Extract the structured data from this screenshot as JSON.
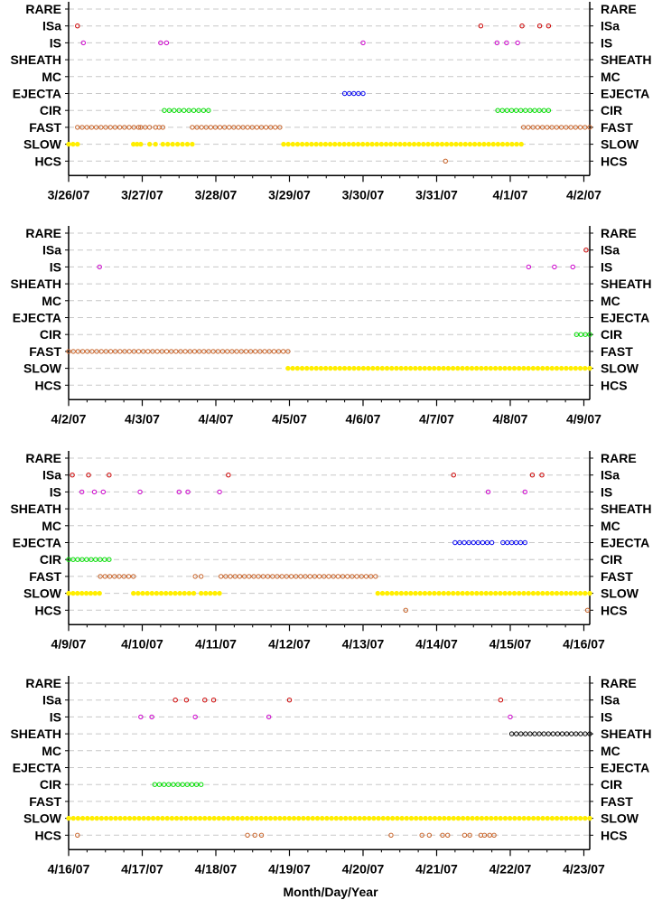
{
  "chart_data": {
    "type": "scatter",
    "xlabel": "Month/Day/Year",
    "categories": [
      "RARE",
      "ISa",
      "IS",
      "SHEATH",
      "MC",
      "EJECTA",
      "CIR",
      "FAST",
      "SLOW",
      "HCS"
    ],
    "colors": {
      "RARE": "#888888",
      "ISa": "#cc0000",
      "IS": "#cc00cc",
      "SHEATH": "#000000",
      "MC": "#888888",
      "EJECTA": "#0000ee",
      "CIR": "#00dd00",
      "FAST": "#c8642a",
      "SLOW": "#ffee00",
      "HCS": "#c8642a"
    },
    "panels": [
      {
        "xlim": [
          0,
          7.08
        ],
        "xticklabels": [
          "3/26/07",
          "3/27/07",
          "3/28/07",
          "3/29/07",
          "3/30/07",
          "3/31/07",
          "4/1/07",
          "4/2/07"
        ],
        "series": [
          {
            "category": "ISa",
            "points": [
              0.12,
              5.6,
              6.16,
              6.4,
              6.52
            ]
          },
          {
            "category": "IS",
            "points": [
              0.2,
              1.25,
              1.33,
              4.0,
              5.82,
              5.95,
              6.1
            ]
          },
          {
            "category": "EJECTA",
            "ranges": [
              [
                3.75,
                4.0
              ]
            ]
          },
          {
            "category": "CIR",
            "ranges": [
              [
                1.3,
                1.9
              ],
              [
                5.83,
                6.52
              ]
            ]
          },
          {
            "category": "FAST",
            "ranges": [
              [
                0.12,
                0.95
              ],
              [
                0.98,
                1.1
              ],
              [
                1.18,
                1.28
              ],
              [
                1.68,
                2.87
              ],
              [
                6.18,
                7.08
              ]
            ]
          },
          {
            "category": "SLOW",
            "ranges": [
              [
                0.0,
                0.12
              ],
              [
                0.88,
                0.98
              ],
              [
                1.1,
                1.18
              ],
              [
                1.28,
                1.68
              ],
              [
                2.92,
                6.15
              ]
            ]
          },
          {
            "category": "HCS",
            "points": [
              5.12
            ]
          }
        ]
      },
      {
        "xlim": [
          0,
          7.08
        ],
        "xticklabels": [
          "4/2/07",
          "4/3/07",
          "4/4/07",
          "4/5/07",
          "4/6/07",
          "4/7/07",
          "4/8/07",
          "4/9/07"
        ],
        "series": [
          {
            "category": "ISa",
            "points": [
              7.03
            ]
          },
          {
            "category": "IS",
            "points": [
              0.42,
              6.25,
              6.6,
              6.85
            ]
          },
          {
            "category": "CIR",
            "ranges": [
              [
                6.9,
                7.08
              ]
            ]
          },
          {
            "category": "FAST",
            "ranges": [
              [
                0.0,
                2.98
              ]
            ]
          },
          {
            "category": "SLOW",
            "ranges": [
              [
                2.98,
                7.08
              ]
            ]
          }
        ]
      },
      {
        "xlim": [
          0,
          7.08
        ],
        "xticklabels": [
          "4/9/07",
          "4/10/07",
          "4/11/07",
          "4/12/07",
          "4/13/07",
          "4/14/07",
          "4/15/07",
          "4/16/07"
        ],
        "series": [
          {
            "category": "ISa",
            "points": [
              0.05,
              0.27,
              0.55,
              2.17,
              5.23,
              6.3,
              6.43
            ]
          },
          {
            "category": "IS",
            "points": [
              0.18,
              0.35,
              0.47,
              0.97,
              1.5,
              1.62,
              2.05,
              5.7,
              6.2
            ]
          },
          {
            "category": "EJECTA",
            "ranges": [
              [
                5.25,
                5.75
              ],
              [
                5.9,
                6.2
              ]
            ]
          },
          {
            "category": "CIR",
            "ranges": [
              [
                0.0,
                0.55
              ]
            ]
          },
          {
            "category": "FAST",
            "ranges": [
              [
                0.43,
                0.88
              ],
              [
                1.72,
                1.8
              ],
              [
                2.07,
                4.17
              ]
            ]
          },
          {
            "category": "SLOW",
            "ranges": [
              [
                0.0,
                0.42
              ],
              [
                0.88,
                1.7
              ],
              [
                1.8,
                2.05
              ],
              [
                4.2,
                7.08
              ]
            ]
          },
          {
            "category": "HCS",
            "points": [
              4.58,
              7.05
            ]
          }
        ]
      },
      {
        "xlim": [
          0,
          7.08
        ],
        "xticklabels": [
          "4/16/07",
          "4/17/07",
          "4/18/07",
          "4/19/07",
          "4/20/07",
          "4/21/07",
          "4/22/07",
          "4/23/07"
        ],
        "series": [
          {
            "category": "ISa",
            "points": [
              1.45,
              1.6,
              1.85,
              1.97,
              3.0,
              5.87
            ]
          },
          {
            "category": "IS",
            "points": [
              0.98,
              1.13,
              1.72,
              2.72,
              6.0
            ]
          },
          {
            "category": "SHEATH",
            "ranges": [
              [
                6.02,
                7.08
              ]
            ]
          },
          {
            "category": "CIR",
            "ranges": [
              [
                1.17,
                1.8
              ]
            ]
          },
          {
            "category": "SLOW",
            "ranges": [
              [
                0.0,
                7.08
              ]
            ]
          },
          {
            "category": "HCS",
            "points": [
              0.12,
              2.43,
              2.53,
              2.62,
              4.38,
              4.8,
              4.9,
              5.08,
              5.15,
              5.38,
              5.45,
              5.6,
              5.65,
              5.72,
              5.78
            ]
          }
        ]
      }
    ]
  }
}
